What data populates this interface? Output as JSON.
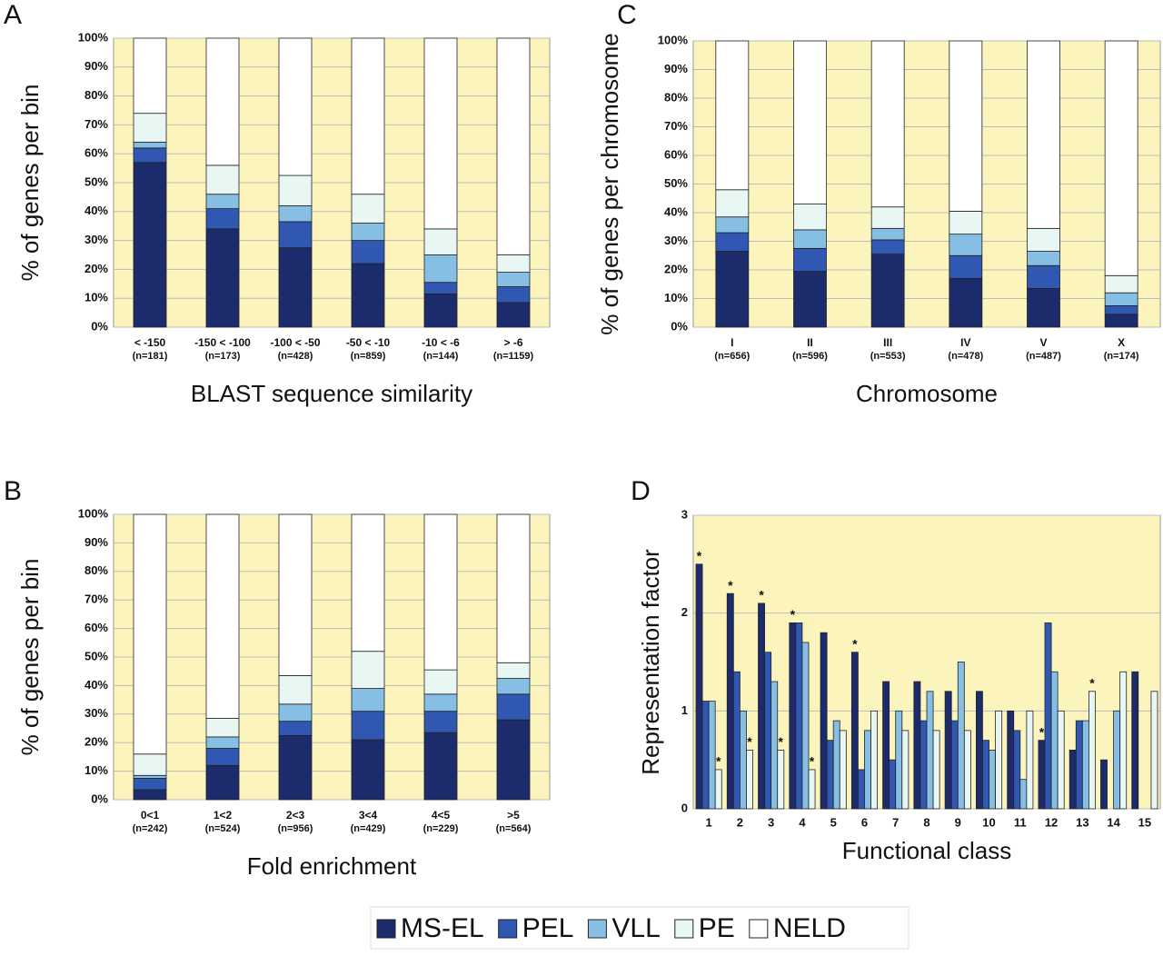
{
  "legend": [
    {
      "name": "MS-EL",
      "color": "#1b2b6b"
    },
    {
      "name": "PEL",
      "color": "#3057b2"
    },
    {
      "name": "VLL",
      "color": "#86bfe3"
    },
    {
      "name": "PE",
      "color": "#e8f6f4"
    },
    {
      "name": "NELD",
      "color": "#ffffff"
    }
  ],
  "chart_data": [
    {
      "type": "stacked_bar",
      "panel": "A",
      "ylabel": "% of genes per bin",
      "xlabel": "BLAST sequence similarity",
      "categories": [
        "< -150",
        "-150 < -100",
        "-100 < -50",
        "-50 < -10",
        "-10 < -6",
        "> -6"
      ],
      "n_labels": [
        "(n=181)",
        "(n=173)",
        "(n=428)",
        "(n=859)",
        "(n=144)",
        "(n=1159)"
      ],
      "series": [
        {
          "values": [
            57,
            34,
            27.5,
            22,
            11.5,
            8.5
          ]
        },
        {
          "values": [
            5,
            7,
            9,
            8,
            4,
            5.5
          ]
        },
        {
          "values": [
            2,
            5,
            5.5,
            6,
            9.5,
            5
          ]
        },
        {
          "values": [
            10,
            10,
            10.5,
            10,
            9,
            6
          ]
        },
        {
          "values": [
            26,
            44,
            47.5,
            54,
            66,
            75
          ]
        }
      ],
      "ylim": [
        0,
        100
      ],
      "yticks": [
        {
          "value": 0,
          "label": "0%"
        },
        {
          "value": 10,
          "label": "10%"
        },
        {
          "value": 20,
          "label": "20%"
        },
        {
          "value": 30,
          "label": "30%"
        },
        {
          "value": 40,
          "label": "40%"
        },
        {
          "value": 50,
          "label": "50%"
        },
        {
          "value": 60,
          "label": "60%"
        },
        {
          "value": 70,
          "label": "70%"
        },
        {
          "value": 80,
          "label": "80%"
        },
        {
          "value": 90,
          "label": "90%"
        },
        {
          "value": 100,
          "label": "100%"
        }
      ],
      "grid": true
    },
    {
      "type": "stacked_bar",
      "panel": "B",
      "ylabel": "% of genes per bin",
      "xlabel": "Fold enrichment",
      "categories": [
        "0<1",
        "1<2",
        "2<3",
        "3<4",
        "4<5",
        ">5"
      ],
      "n_labels": [
        "(n=242)",
        "(n=524)",
        "(n=956)",
        "(n=429)",
        "(n=229)",
        "(n=564)"
      ],
      "series": [
        {
          "values": [
            3.5,
            12,
            22.5,
            21,
            23.5,
            28
          ]
        },
        {
          "values": [
            4,
            6,
            5,
            10,
            7.5,
            9
          ]
        },
        {
          "values": [
            1,
            4,
            6,
            8,
            6,
            5.5
          ]
        },
        {
          "values": [
            7.5,
            6.5,
            10,
            13,
            8.5,
            5.5
          ]
        },
        {
          "values": [
            84,
            71.5,
            56.5,
            48,
            54.5,
            52
          ]
        }
      ],
      "ylim": [
        0,
        100
      ],
      "yticks": [
        {
          "value": 0,
          "label": "0%"
        },
        {
          "value": 10,
          "label": "10%"
        },
        {
          "value": 20,
          "label": "20%"
        },
        {
          "value": 30,
          "label": "30%"
        },
        {
          "value": 40,
          "label": "40%"
        },
        {
          "value": 50,
          "label": "50%"
        },
        {
          "value": 60,
          "label": "60%"
        },
        {
          "value": 70,
          "label": "70%"
        },
        {
          "value": 80,
          "label": "80%"
        },
        {
          "value": 90,
          "label": "90%"
        },
        {
          "value": 100,
          "label": "100%"
        }
      ],
      "grid": true
    },
    {
      "type": "stacked_bar",
      "panel": "C",
      "ylabel": "% of genes per chromosome",
      "xlabel": "Chromosome",
      "categories": [
        "I",
        "II",
        "III",
        "IV",
        "V",
        "X"
      ],
      "n_labels": [
        "(n=656)",
        "(n=596)",
        "(n=553)",
        "(n=478)",
        "(n=487)",
        "(n=174)"
      ],
      "series": [
        {
          "values": [
            26.5,
            19.5,
            25.5,
            17,
            13.5,
            4.5
          ]
        },
        {
          "values": [
            6.5,
            8,
            5,
            8,
            8,
            3
          ]
        },
        {
          "values": [
            5.5,
            6.5,
            4,
            7.5,
            5,
            4.5
          ]
        },
        {
          "values": [
            9.5,
            9,
            7.5,
            8,
            8,
            6
          ]
        },
        {
          "values": [
            52,
            57,
            58,
            59.5,
            65.5,
            82
          ]
        }
      ],
      "ylim": [
        0,
        100
      ],
      "yticks": [
        {
          "value": 0,
          "label": "0%"
        },
        {
          "value": 10,
          "label": "10%"
        },
        {
          "value": 20,
          "label": "20%"
        },
        {
          "value": 30,
          "label": "30%"
        },
        {
          "value": 40,
          "label": "40%"
        },
        {
          "value": 50,
          "label": "50%"
        },
        {
          "value": 60,
          "label": "60%"
        },
        {
          "value": 70,
          "label": "70%"
        },
        {
          "value": 80,
          "label": "80%"
        },
        {
          "value": 90,
          "label": "90%"
        },
        {
          "value": 100,
          "label": "100%"
        }
      ],
      "grid": true
    },
    {
      "type": "grouped_bar",
      "panel": "D",
      "ylabel": "Representation factor",
      "xlabel": "Functional class",
      "categories": [
        "1",
        "2",
        "3",
        "4",
        "5",
        "6",
        "7",
        "8",
        "9",
        "10",
        "11",
        "12",
        "13",
        "14",
        "15"
      ],
      "series": [
        {
          "values": [
            2.5,
            2.2,
            2.1,
            1.9,
            1.8,
            1.6,
            1.3,
            1.3,
            1.2,
            1.2,
            1.0,
            0.7,
            0.6,
            0.5,
            1.4
          ]
        },
        {
          "values": [
            1.1,
            1.4,
            1.6,
            1.9,
            0.7,
            0.4,
            0.5,
            0.9,
            0.9,
            0.7,
            0.8,
            1.9,
            0.9,
            null,
            null
          ]
        },
        {
          "values": [
            1.1,
            1.0,
            1.3,
            1.7,
            0.9,
            0.8,
            1.0,
            1.2,
            1.5,
            0.6,
            0.3,
            1.4,
            0.9,
            1.0,
            null
          ]
        },
        {
          "values": [
            0.4,
            0.6,
            0.6,
            0.4,
            0.8,
            1.0,
            0.8,
            0.8,
            0.8,
            1.0,
            1.0,
            1.0,
            1.2,
            1.4,
            1.2
          ]
        }
      ],
      "annotations": [
        {
          "text": "*",
          "category": 0,
          "series": 0
        },
        {
          "text": "*",
          "category": 1,
          "series": 0
        },
        {
          "text": "*",
          "category": 2,
          "series": 0
        },
        {
          "text": "*",
          "category": 3,
          "series": 0
        },
        {
          "text": "*",
          "category": 5,
          "series": 0
        },
        {
          "text": "*",
          "category": 11,
          "series": 0
        },
        {
          "text": "*",
          "category": 0,
          "series": 3
        },
        {
          "text": "*",
          "category": 1,
          "series": 3
        },
        {
          "text": "*",
          "category": 2,
          "series": 3
        },
        {
          "text": "*",
          "category": 3,
          "series": 3
        },
        {
          "text": "*",
          "category": 12,
          "series": 3
        }
      ],
      "ylim": [
        0,
        3
      ],
      "yticks": [
        0,
        1,
        2,
        3
      ],
      "grid": true
    }
  ]
}
